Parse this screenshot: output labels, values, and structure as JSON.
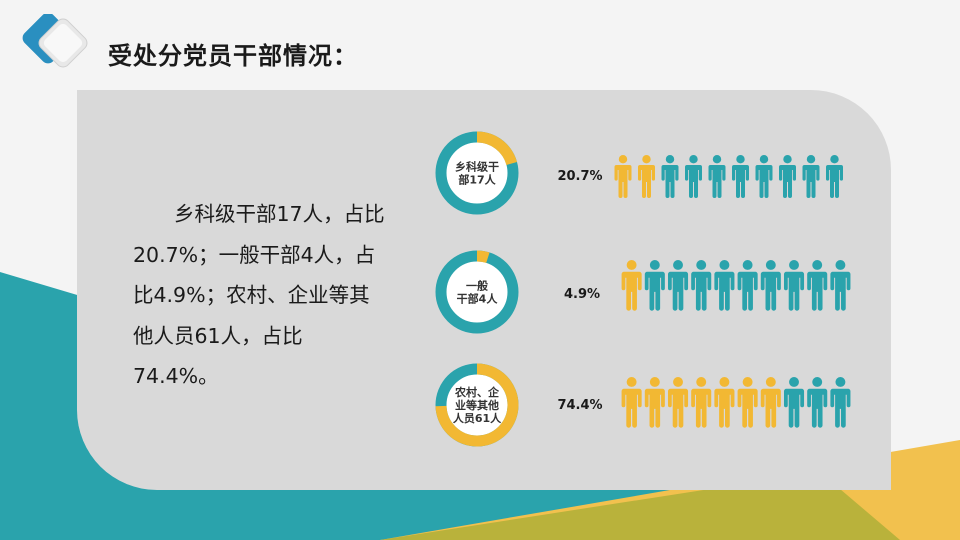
{
  "title": "受处分党员干部情况：",
  "description": "乡科级干部17人，占比20.7%；一般干部4人，占比4.9%；农村、企业等其他人员61人，占比74.4%。",
  "colors": {
    "teal": "#2aa3ac",
    "yellow": "#f2b833",
    "panel": "#d9d9d9",
    "title": "#1a1a1a"
  },
  "chart_data": {
    "type": "pie",
    "style": "donut-with-pictogram",
    "pictogram_total_icons": 10,
    "categories": [
      "乡科级干部17人",
      "一般干部4人",
      "农村、企业等其他人员61人"
    ],
    "category_lines": [
      [
        "乡科级干",
        "部17人"
      ],
      [
        "一般",
        "干部4人"
      ],
      [
        "农村、企",
        "业等其他",
        "人员61人"
      ]
    ],
    "values": [
      20.7,
      4.9,
      74.4
    ],
    "value_labels": [
      "20.7%",
      "4.9%",
      "74.4%"
    ],
    "highlighted_icons": [
      2,
      1,
      7
    ],
    "counts": [
      17,
      4,
      61
    ]
  }
}
